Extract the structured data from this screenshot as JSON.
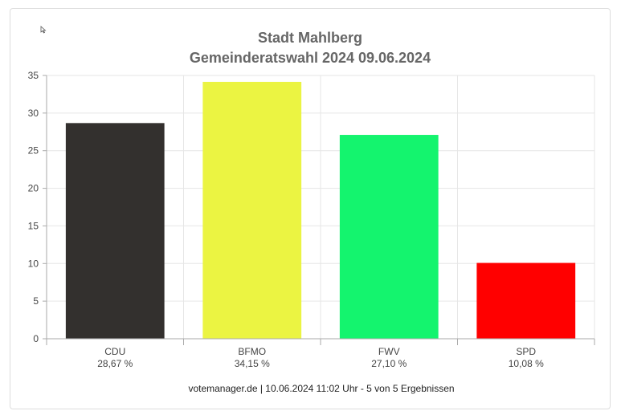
{
  "chart_data": {
    "type": "bar",
    "title": "Stadt Mahlberg",
    "subtitle": "Gemeinderatswahl 2024 09.06.2024",
    "categories": [
      "CDU",
      "BFMO",
      "FWV",
      "SPD"
    ],
    "values": [
      28.67,
      34.15,
      27.1,
      10.08
    ],
    "value_labels": [
      "28,67 %",
      "34,15 %",
      "27,10 %",
      "10,08 %"
    ],
    "colors": [
      "#33302e",
      "#ebf442",
      "#14f46e",
      "#ff0000"
    ],
    "ylim": [
      0,
      35
    ],
    "yticks": [
      0,
      5,
      10,
      15,
      20,
      25,
      30,
      35
    ],
    "xlabel": "",
    "ylabel": "",
    "grid": true,
    "legend": "none"
  },
  "footer": "votemanager.de | 10.06.2024 11:02 Uhr - 5 von 5 Ergebnissen",
  "cursor_icon": "mouse-pointer-icon"
}
